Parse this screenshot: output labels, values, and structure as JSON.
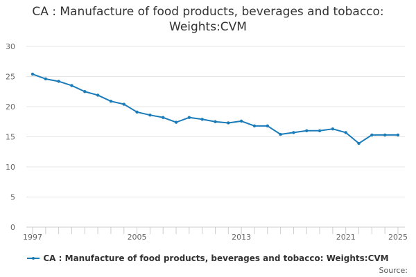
{
  "chart_data": {
    "type": "line",
    "title_lines": [
      "CA : Manufacture of food products, beverages and tobacco:",
      "Weights:CVM"
    ],
    "xlabel": "",
    "ylabel": "",
    "x": [
      1997,
      1998,
      1999,
      2000,
      2001,
      2002,
      2003,
      2004,
      2005,
      2006,
      2007,
      2008,
      2009,
      2010,
      2011,
      2012,
      2013,
      2014,
      2015,
      2016,
      2017,
      2018,
      2019,
      2020,
      2021,
      2022,
      2023,
      2024,
      2025
    ],
    "series": [
      {
        "name": "CA : Manufacture of food products, beverages and tobacco: Weights:CVM",
        "color": "#1a7bb9",
        "values": [
          25.4,
          24.6,
          24.2,
          23.5,
          22.5,
          21.9,
          20.9,
          20.4,
          19.1,
          18.6,
          18.2,
          17.4,
          18.2,
          17.9,
          17.5,
          17.3,
          17.6,
          16.8,
          16.8,
          15.4,
          15.7,
          16.0,
          16.0,
          16.3,
          15.7,
          13.9,
          15.3,
          15.3,
          15.3
        ]
      }
    ],
    "ylim": [
      0,
      30
    ],
    "y_ticks": [
      0,
      5,
      10,
      15,
      20,
      25,
      30
    ],
    "x_tick_labels": [
      1997,
      2005,
      2013,
      2021,
      2025
    ],
    "grid": true,
    "legend_position": "bottom",
    "credits": "Source:"
  }
}
